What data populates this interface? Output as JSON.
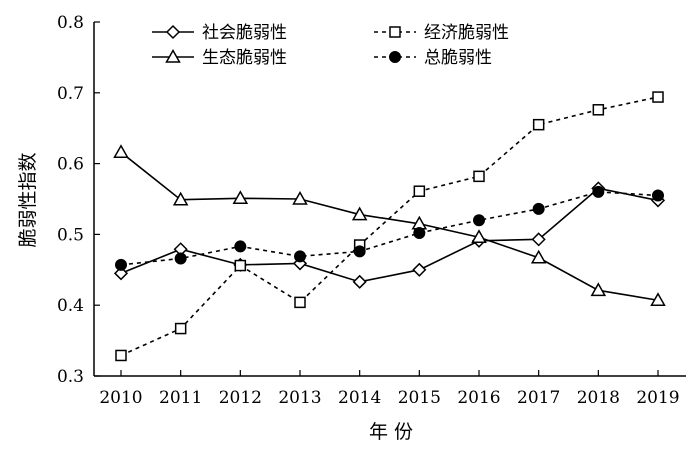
{
  "chart_data": {
    "type": "line",
    "xlabel": "年 份",
    "ylabel": "脆弱性指数",
    "ylim": [
      0.3,
      0.8
    ],
    "yticks": [
      "0.3",
      "0.4",
      "0.5",
      "0.6",
      "0.7",
      "0.8"
    ],
    "categories": [
      "2010",
      "2011",
      "2012",
      "2013",
      "2014",
      "2015",
      "2016",
      "2017",
      "2018",
      "2019"
    ],
    "legend_placement": "top",
    "grid": false,
    "series": [
      {
        "name": "社会脆弱性",
        "marker": "diamond",
        "line": "solid",
        "values": [
          0.445,
          0.479,
          0.457,
          0.459,
          0.433,
          0.45,
          0.491,
          0.493,
          0.565,
          0.548
        ]
      },
      {
        "name": "经济脆弱性",
        "marker": "square",
        "line": "dashed",
        "values": [
          0.329,
          0.367,
          0.456,
          0.404,
          0.485,
          0.561,
          0.582,
          0.655,
          0.676,
          0.694
        ]
      },
      {
        "name": "生态脆弱性",
        "marker": "triangle",
        "line": "solid",
        "values": [
          0.616,
          0.549,
          0.551,
          0.55,
          0.528,
          0.515,
          0.496,
          0.467,
          0.421,
          0.407
        ]
      },
      {
        "name": "总脆弱性",
        "marker": "circle",
        "line": "dashed",
        "values": [
          0.457,
          0.466,
          0.483,
          0.469,
          0.476,
          0.502,
          0.52,
          0.536,
          0.56,
          0.555
        ]
      }
    ]
  }
}
